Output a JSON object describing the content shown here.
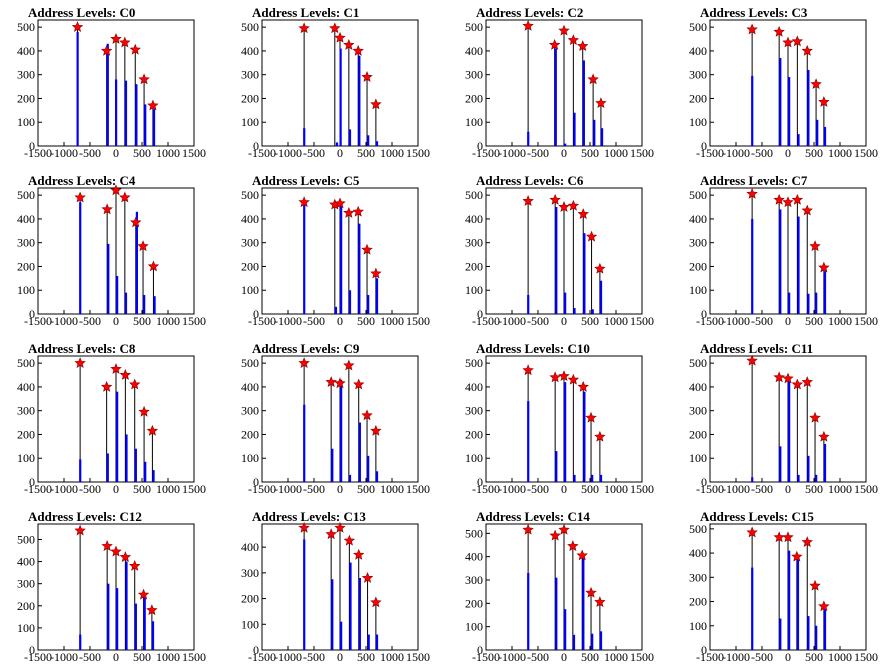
{
  "figure": {
    "title_prefix": "Address Levels: ",
    "xticks": [
      -1500,
      -1000,
      -500,
      0,
      500,
      1000,
      1500
    ],
    "xtick_labels": [
      "-1500",
      "-1000",
      "-500",
      "0",
      "500",
      "1000",
      "1500"
    ],
    "xlim": [
      -1500,
      1500
    ],
    "colors": {
      "bar": "#0000ff",
      "marker": "#ff0000",
      "spike": "#000000"
    }
  },
  "chart_data": [
    {
      "type": "bar",
      "title": "Address Levels: C0",
      "ylim": [
        0,
        530
      ],
      "yticks": [
        0,
        100,
        200,
        300,
        400,
        500
      ],
      "levels": [
        {
          "x": -740,
          "y": 500
        },
        {
          "x": -180,
          "y": 400
        },
        {
          "x": 0,
          "y": 450
        },
        {
          "x": 170,
          "y": 435
        },
        {
          "x": 370,
          "y": 405
        },
        {
          "x": 540,
          "y": 280
        },
        {
          "x": 710,
          "y": 170
        }
      ],
      "x": [
        -740,
        -160,
        0,
        190,
        390,
        560,
        730
      ],
      "values": [
        480,
        430,
        280,
        275,
        260,
        175,
        155
      ]
    },
    {
      "type": "bar",
      "title": "Address Levels: C1",
      "ylim": [
        0,
        530
      ],
      "yticks": [
        0,
        100,
        200,
        300,
        400,
        500
      ],
      "levels": [
        {
          "x": -690,
          "y": 495
        },
        {
          "x": -100,
          "y": 495
        },
        {
          "x": 0,
          "y": 455
        },
        {
          "x": 170,
          "y": 425
        },
        {
          "x": 350,
          "y": 400
        },
        {
          "x": 520,
          "y": 290
        },
        {
          "x": 690,
          "y": 175
        }
      ],
      "x": [
        -690,
        -60,
        10,
        190,
        370,
        540,
        710
      ],
      "values": [
        75,
        15,
        410,
        70,
        380,
        45,
        20
      ]
    },
    {
      "type": "bar",
      "title": "Address Levels: C2",
      "ylim": [
        0,
        530
      ],
      "yticks": [
        0,
        100,
        200,
        300,
        400,
        500
      ],
      "levels": [
        {
          "x": -690,
          "y": 505
        },
        {
          "x": -180,
          "y": 425
        },
        {
          "x": 0,
          "y": 485
        },
        {
          "x": 180,
          "y": 445
        },
        {
          "x": 360,
          "y": 420
        },
        {
          "x": 560,
          "y": 280
        },
        {
          "x": 710,
          "y": 180
        }
      ],
      "x": [
        -690,
        -160,
        20,
        200,
        380,
        580,
        730
      ],
      "values": [
        60,
        410,
        10,
        140,
        360,
        110,
        75
      ]
    },
    {
      "type": "bar",
      "title": "Address Levels: C3",
      "ylim": [
        0,
        530
      ],
      "yticks": [
        0,
        100,
        200,
        300,
        400,
        500
      ],
      "levels": [
        {
          "x": -690,
          "y": 490
        },
        {
          "x": -170,
          "y": 480
        },
        {
          "x": 0,
          "y": 435
        },
        {
          "x": 180,
          "y": 440
        },
        {
          "x": 370,
          "y": 400
        },
        {
          "x": 540,
          "y": 260
        },
        {
          "x": 690,
          "y": 185
        }
      ],
      "x": [
        -690,
        -150,
        20,
        200,
        390,
        560,
        710
      ],
      "values": [
        295,
        370,
        290,
        50,
        320,
        110,
        80
      ]
    },
    {
      "type": "bar",
      "title": "Address Levels: C4",
      "ylim": [
        0,
        530
      ],
      "yticks": [
        0,
        100,
        200,
        300,
        400,
        500
      ],
      "levels": [
        {
          "x": -690,
          "y": 490
        },
        {
          "x": -170,
          "y": 440
        },
        {
          "x": 0,
          "y": 520
        },
        {
          "x": 170,
          "y": 490
        },
        {
          "x": 380,
          "y": 385
        },
        {
          "x": 520,
          "y": 285
        },
        {
          "x": 720,
          "y": 200
        }
      ],
      "x": [
        -690,
        -150,
        20,
        190,
        400,
        540,
        740
      ],
      "values": [
        470,
        295,
        160,
        90,
        430,
        80,
        75
      ]
    },
    {
      "type": "bar",
      "title": "Address Levels: C5",
      "ylim": [
        0,
        530
      ],
      "yticks": [
        0,
        100,
        200,
        300,
        400,
        500
      ],
      "levels": [
        {
          "x": -690,
          "y": 470
        },
        {
          "x": -100,
          "y": 460
        },
        {
          "x": 0,
          "y": 465
        },
        {
          "x": 170,
          "y": 425
        },
        {
          "x": 350,
          "y": 430
        },
        {
          "x": 520,
          "y": 270
        },
        {
          "x": 690,
          "y": 170
        }
      ],
      "x": [
        -690,
        -80,
        20,
        190,
        370,
        540,
        710
      ],
      "values": [
        470,
        30,
        460,
        100,
        380,
        80,
        150
      ]
    },
    {
      "type": "bar",
      "title": "Address Levels: C6",
      "ylim": [
        0,
        530
      ],
      "yticks": [
        0,
        100,
        200,
        300,
        400,
        500
      ],
      "levels": [
        {
          "x": -690,
          "y": 475
        },
        {
          "x": -170,
          "y": 480
        },
        {
          "x": 0,
          "y": 450
        },
        {
          "x": 180,
          "y": 455
        },
        {
          "x": 370,
          "y": 420
        },
        {
          "x": 530,
          "y": 325
        },
        {
          "x": 690,
          "y": 190
        }
      ],
      "x": [
        -690,
        -150,
        20,
        200,
        390,
        550,
        710
      ],
      "values": [
        80,
        450,
        90,
        25,
        340,
        20,
        140
      ]
    },
    {
      "type": "bar",
      "title": "Address Levels: C7",
      "ylim": [
        0,
        530
      ],
      "yticks": [
        0,
        100,
        200,
        300,
        400,
        500
      ],
      "levels": [
        {
          "x": -690,
          "y": 505
        },
        {
          "x": -170,
          "y": 480
        },
        {
          "x": 0,
          "y": 470
        },
        {
          "x": 180,
          "y": 480
        },
        {
          "x": 370,
          "y": 435
        },
        {
          "x": 520,
          "y": 285
        },
        {
          "x": 690,
          "y": 195
        }
      ],
      "x": [
        -690,
        -150,
        20,
        200,
        390,
        540,
        710
      ],
      "values": [
        400,
        440,
        90,
        410,
        85,
        90,
        180
      ]
    },
    {
      "type": "bar",
      "title": "Address Levels: C8",
      "ylim": [
        0,
        530
      ],
      "yticks": [
        0,
        100,
        200,
        300,
        400,
        500
      ],
      "levels": [
        {
          "x": -690,
          "y": 500
        },
        {
          "x": -180,
          "y": 400
        },
        {
          "x": 0,
          "y": 475
        },
        {
          "x": 180,
          "y": 450
        },
        {
          "x": 360,
          "y": 410
        },
        {
          "x": 540,
          "y": 295
        },
        {
          "x": 700,
          "y": 215
        }
      ],
      "x": [
        -690,
        -160,
        20,
        200,
        380,
        560,
        720
      ],
      "values": [
        95,
        120,
        380,
        200,
        140,
        85,
        50
      ]
    },
    {
      "type": "bar",
      "title": "Address Levels: C9",
      "ylim": [
        0,
        530
      ],
      "yticks": [
        0,
        100,
        200,
        300,
        400,
        500
      ],
      "levels": [
        {
          "x": -690,
          "y": 500
        },
        {
          "x": -170,
          "y": 420
        },
        {
          "x": 0,
          "y": 415
        },
        {
          "x": 170,
          "y": 490
        },
        {
          "x": 360,
          "y": 410
        },
        {
          "x": 520,
          "y": 280
        },
        {
          "x": 690,
          "y": 215
        }
      ],
      "x": [
        -690,
        -150,
        20,
        190,
        380,
        540,
        710
      ],
      "values": [
        325,
        140,
        430,
        30,
        250,
        110,
        45
      ]
    },
    {
      "type": "bar",
      "title": "Address Levels: C10",
      "ylim": [
        0,
        530
      ],
      "yticks": [
        0,
        100,
        200,
        300,
        400,
        500
      ],
      "levels": [
        {
          "x": -690,
          "y": 470
        },
        {
          "x": -170,
          "y": 440
        },
        {
          "x": 0,
          "y": 445
        },
        {
          "x": 180,
          "y": 430
        },
        {
          "x": 370,
          "y": 400
        },
        {
          "x": 520,
          "y": 270
        },
        {
          "x": 690,
          "y": 190
        }
      ],
      "x": [
        -690,
        -150,
        20,
        200,
        390,
        540,
        710
      ],
      "values": [
        340,
        130,
        420,
        30,
        380,
        30,
        30
      ]
    },
    {
      "type": "bar",
      "title": "Address Levels: C11",
      "ylim": [
        0,
        530
      ],
      "yticks": [
        0,
        100,
        200,
        300,
        400,
        500
      ],
      "levels": [
        {
          "x": -690,
          "y": 510
        },
        {
          "x": -170,
          "y": 440
        },
        {
          "x": 0,
          "y": 435
        },
        {
          "x": 180,
          "y": 410
        },
        {
          "x": 370,
          "y": 420
        },
        {
          "x": 520,
          "y": 270
        },
        {
          "x": 690,
          "y": 190
        }
      ],
      "x": [
        -690,
        -150,
        20,
        200,
        390,
        540,
        710
      ],
      "values": [
        20,
        150,
        440,
        30,
        110,
        30,
        160
      ]
    },
    {
      "type": "bar",
      "title": "Address Levels: C12",
      "ylim": [
        0,
        570
      ],
      "yticks": [
        0,
        100,
        200,
        300,
        400,
        500
      ],
      "levels": [
        {
          "x": -690,
          "y": 540
        },
        {
          "x": -170,
          "y": 470
        },
        {
          "x": 0,
          "y": 445
        },
        {
          "x": 180,
          "y": 420
        },
        {
          "x": 360,
          "y": 380
        },
        {
          "x": 530,
          "y": 250
        },
        {
          "x": 690,
          "y": 180
        }
      ],
      "x": [
        -690,
        -150,
        20,
        200,
        380,
        550,
        710
      ],
      "values": [
        70,
        300,
        280,
        400,
        210,
        250,
        130
      ]
    },
    {
      "type": "bar",
      "title": "Address Levels: C13",
      "ylim": [
        0,
        490
      ],
      "yticks": [
        0,
        100,
        200,
        300,
        400
      ],
      "levels": [
        {
          "x": -690,
          "y": 475
        },
        {
          "x": -170,
          "y": 450
        },
        {
          "x": 0,
          "y": 475
        },
        {
          "x": 180,
          "y": 425
        },
        {
          "x": 360,
          "y": 370
        },
        {
          "x": 530,
          "y": 280
        },
        {
          "x": 690,
          "y": 185
        }
      ],
      "x": [
        -690,
        -150,
        20,
        200,
        380,
        550,
        710
      ],
      "values": [
        430,
        275,
        110,
        340,
        280,
        60,
        60
      ]
    },
    {
      "type": "bar",
      "title": "Address Levels: C14",
      "ylim": [
        0,
        540
      ],
      "yticks": [
        0,
        100,
        200,
        300,
        400,
        500
      ],
      "levels": [
        {
          "x": -690,
          "y": 515
        },
        {
          "x": -170,
          "y": 490
        },
        {
          "x": 0,
          "y": 515
        },
        {
          "x": 170,
          "y": 445
        },
        {
          "x": 350,
          "y": 405
        },
        {
          "x": 520,
          "y": 245
        },
        {
          "x": 690,
          "y": 205
        }
      ],
      "x": [
        -690,
        -150,
        20,
        190,
        370,
        540,
        710
      ],
      "values": [
        330,
        310,
        175,
        65,
        400,
        70,
        80
      ]
    },
    {
      "type": "bar",
      "title": "Address Levels: C15",
      "ylim": [
        0,
        520
      ],
      "yticks": [
        0,
        100,
        200,
        300,
        400,
        500
      ],
      "levels": [
        {
          "x": -690,
          "y": 485
        },
        {
          "x": -170,
          "y": 465
        },
        {
          "x": 0,
          "y": 465
        },
        {
          "x": 170,
          "y": 385
        },
        {
          "x": 370,
          "y": 445
        },
        {
          "x": 520,
          "y": 265
        },
        {
          "x": 690,
          "y": 180
        }
      ],
      "x": [
        -690,
        -150,
        20,
        190,
        390,
        540,
        710
      ],
      "values": [
        340,
        130,
        410,
        390,
        140,
        100,
        170
      ]
    }
  ]
}
